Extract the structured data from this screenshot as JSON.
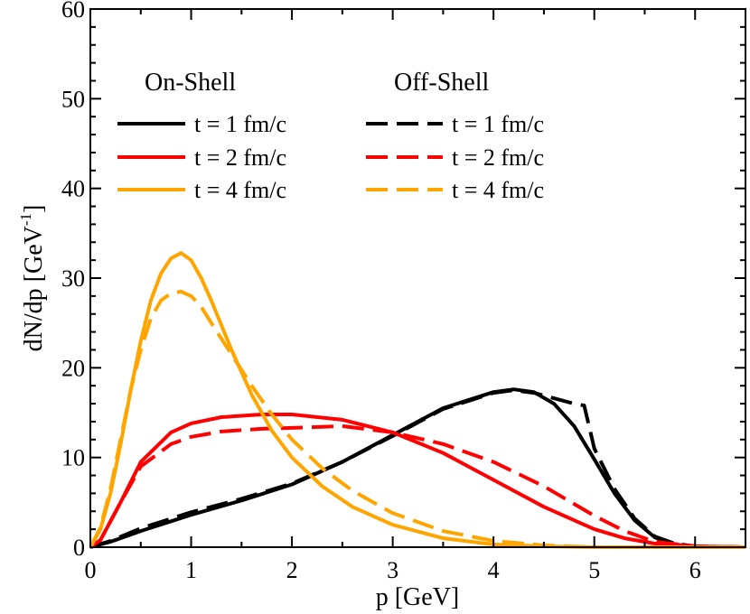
{
  "chart_data": {
    "type": "line",
    "title": "",
    "xlabel": "p [GeV]",
    "ylabel_main": "dN/dp [GeV",
    "ylabel_sup": "-1",
    "ylabel_close": "]",
    "xlim": [
      0,
      6.5
    ],
    "ylim": [
      0,
      60
    ],
    "x_ticks": [
      0,
      1,
      2,
      3,
      4,
      5,
      6
    ],
    "y_ticks": [
      0,
      10,
      20,
      30,
      40,
      50,
      60
    ],
    "legend": {
      "group_on": "On-Shell",
      "group_off": "Off-Shell",
      "on_entries": [
        "t = 1 fm/c",
        "t = 2 fm/c",
        "t = 4 fm/c"
      ],
      "off_entries": [
        "t = 1 fm/c",
        "t = 2 fm/c",
        "t = 4 fm/c"
      ]
    },
    "series": [
      {
        "name": "On-Shell t = 1 fm/c",
        "color": "#000000",
        "dash": "solid",
        "x": [
          0,
          0.2,
          0.5,
          1.0,
          1.5,
          2.0,
          2.5,
          3.0,
          3.5,
          4.0,
          4.2,
          4.4,
          4.6,
          4.8,
          5.0,
          5.2,
          5.4,
          5.6,
          5.8,
          6.0,
          6.5
        ],
        "y": [
          0,
          0.6,
          1.8,
          3.6,
          5.2,
          7.0,
          9.5,
          12.5,
          15.5,
          17.3,
          17.6,
          17.3,
          16.0,
          13.5,
          9.8,
          6.0,
          3.0,
          1.1,
          0.3,
          0.05,
          0
        ]
      },
      {
        "name": "Off-Shell t = 1 fm/c",
        "color": "#000000",
        "dash": "dashed",
        "x": [
          0,
          0.2,
          0.5,
          1.0,
          1.5,
          2.0,
          2.5,
          3.0,
          3.5,
          4.0,
          4.2,
          4.4,
          4.6,
          4.8,
          4.9,
          5.0,
          5.2,
          5.4,
          5.6,
          5.8,
          6.0,
          6.5
        ],
        "y": [
          0,
          0.7,
          2.1,
          3.9,
          5.4,
          7.1,
          9.5,
          12.4,
          15.4,
          17.2,
          17.5,
          17.2,
          16.6,
          16.0,
          15.8,
          11.0,
          6.5,
          3.2,
          1.2,
          0.4,
          0.1,
          0
        ]
      },
      {
        "name": "On-Shell t = 2 fm/c",
        "color": "#ff0000",
        "dash": "solid",
        "x": [
          0,
          0.1,
          0.3,
          0.5,
          0.8,
          1.0,
          1.3,
          1.7,
          2.0,
          2.5,
          3.0,
          3.5,
          4.0,
          4.5,
          5.0,
          5.3,
          5.6,
          6.0,
          6.5
        ],
        "y": [
          0,
          0.8,
          5.0,
          9.5,
          12.8,
          13.8,
          14.5,
          14.8,
          14.8,
          14.2,
          12.8,
          10.5,
          7.5,
          4.5,
          2.0,
          1.0,
          0.4,
          0.1,
          0
        ]
      },
      {
        "name": "Off-Shell t = 2 fm/c",
        "color": "#ff0000",
        "dash": "dashed",
        "x": [
          0,
          0.1,
          0.3,
          0.5,
          0.8,
          1.0,
          1.3,
          1.7,
          2.0,
          2.5,
          3.0,
          3.5,
          4.0,
          4.5,
          5.0,
          5.3,
          5.6,
          6.0,
          6.5
        ],
        "y": [
          0,
          0.8,
          5.0,
          9.0,
          11.5,
          12.3,
          12.9,
          13.2,
          13.3,
          13.5,
          12.8,
          11.5,
          9.5,
          6.8,
          3.5,
          1.8,
          0.6,
          0.1,
          0
        ]
      },
      {
        "name": "On-Shell t = 4 fm/c",
        "color": "#ffa500",
        "dash": "solid",
        "x": [
          0,
          0.1,
          0.2,
          0.3,
          0.4,
          0.5,
          0.6,
          0.7,
          0.8,
          0.9,
          1.0,
          1.1,
          1.2,
          1.4,
          1.6,
          1.8,
          2.0,
          2.3,
          2.6,
          3.0,
          3.5,
          4.0,
          4.5,
          5.0,
          6.5
        ],
        "y": [
          0,
          2.0,
          6.0,
          11.5,
          17.5,
          23.0,
          27.5,
          30.5,
          32.2,
          32.8,
          32.0,
          30.0,
          27.5,
          22.0,
          17.0,
          13.0,
          10.0,
          6.8,
          4.5,
          2.5,
          1.0,
          0.3,
          0.1,
          0,
          0
        ]
      },
      {
        "name": "Off-Shell t = 4 fm/c",
        "color": "#ffa500",
        "dash": "dashed",
        "x": [
          0,
          0.1,
          0.2,
          0.3,
          0.4,
          0.5,
          0.6,
          0.7,
          0.8,
          0.9,
          1.0,
          1.1,
          1.2,
          1.4,
          1.6,
          1.8,
          2.0,
          2.3,
          2.6,
          3.0,
          3.5,
          4.0,
          4.5,
          5.0,
          6.5
        ],
        "y": [
          0,
          2.2,
          6.5,
          12.0,
          17.5,
          22.0,
          25.5,
          27.5,
          28.3,
          28.5,
          28.0,
          26.8,
          25.0,
          21.5,
          18.0,
          14.8,
          12.0,
          8.8,
          6.3,
          3.8,
          1.8,
          0.7,
          0.2,
          0,
          0
        ]
      }
    ]
  }
}
